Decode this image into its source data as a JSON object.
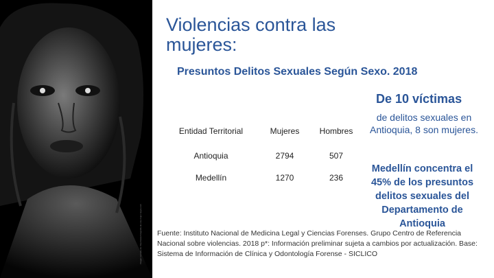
{
  "slide": {
    "title": "Violencias contra las mujeres:",
    "subtitle": "Presuntos Delitos Sexuales Según Sexo. 2018",
    "photo_credit": "Imagen tomada de: http://www.fotografia-de-una-mujer-negra.com",
    "table": {
      "headers": [
        "Entidad Territorial",
        "Mujeres",
        "Hombres"
      ],
      "rows": [
        [
          "Antioquia",
          "2794",
          "507"
        ],
        [
          "Medellín",
          "1270",
          "236"
        ]
      ]
    },
    "highlight": "De 10 víctimas",
    "highlight_note": "de delitos sexuales en Antioquia, 8 son mujeres.",
    "callout": "Medellín concentra el 45% de los presuntos delitos sexuales del Departamento de Antioquia",
    "source": "Fuente: Instituto Nacional de Medicina Legal y Ciencias Forenses. Grupo Centro de Referencia Nacional sobre violencias. 2018 p*: Información preliminar sujeta a cambios por actualización. Base: Sistema de Información de Clínica y Odontología Forense - SICLICO"
  },
  "colors": {
    "accent": "#2a5598",
    "photo_bg": "#000000"
  }
}
